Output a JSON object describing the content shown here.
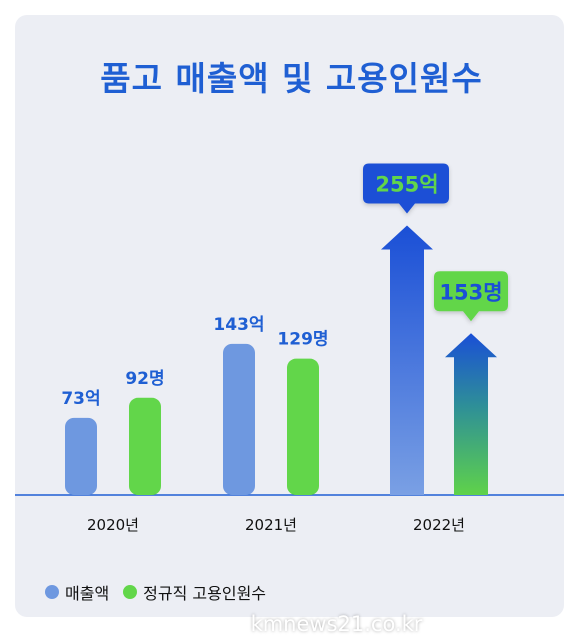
{
  "chart_data": {
    "type": "bar",
    "title": "품고 매출액 및 고용인원수",
    "categories": [
      "2020년",
      "2021년",
      "2022년"
    ],
    "series": [
      {
        "name": "매출액",
        "values": [
          73,
          143,
          255
        ],
        "labels": [
          "73억",
          "143억",
          "255억"
        ],
        "color": "#6e98e0"
      },
      {
        "name": "정규직 고용인원수",
        "values": [
          92,
          129,
          153
        ],
        "labels": [
          "92명",
          "129명",
          "153명"
        ],
        "color": "#62d64a"
      }
    ],
    "accent": "#1f5fd3",
    "legend_position": "bottom-left",
    "grid": false
  },
  "footer": {
    "credit": "kmnews21.co.kr"
  }
}
